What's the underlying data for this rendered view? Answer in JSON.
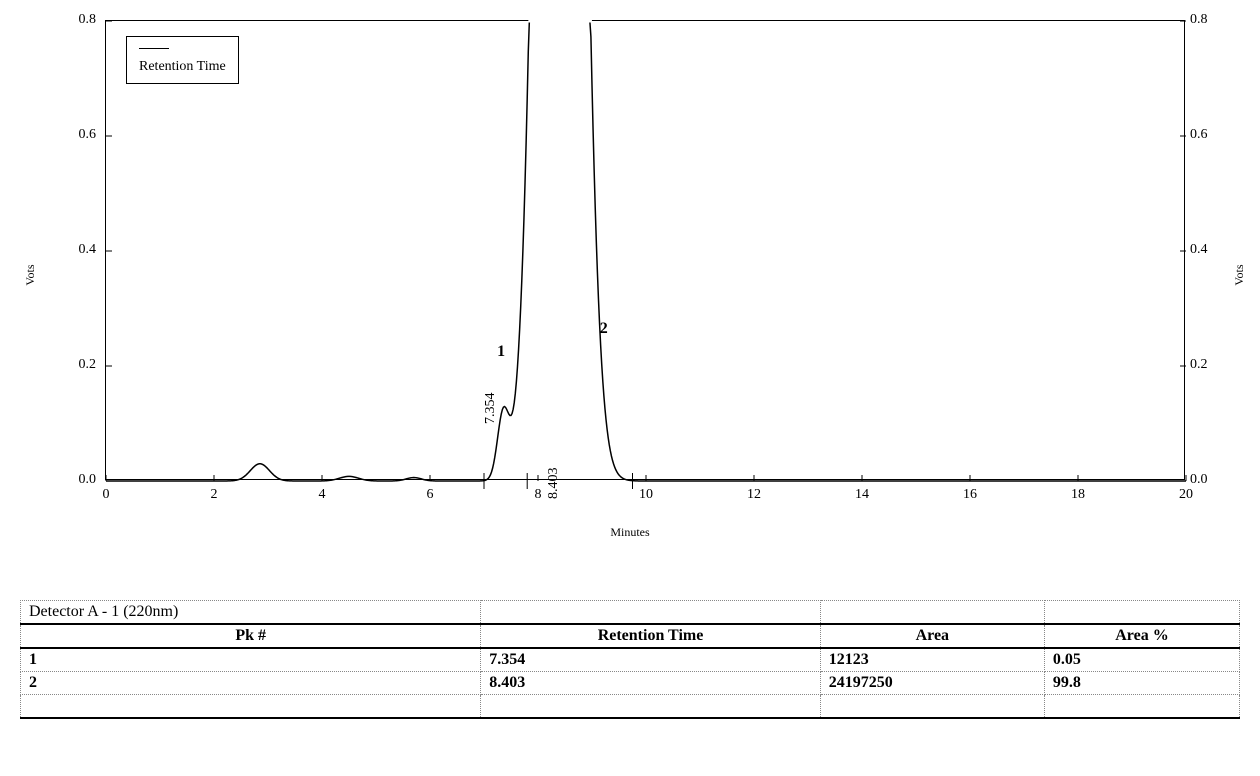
{
  "chart": {
    "type": "chromatogram-line",
    "y_label": "Vots",
    "x_label": "Minutes",
    "legend_text": "Retention Time",
    "xlim": [
      0,
      20
    ],
    "ylim": [
      0.0,
      0.8
    ],
    "x_ticks": [
      0,
      2,
      4,
      6,
      8,
      10,
      12,
      14,
      16,
      18,
      20
    ],
    "y_ticks": [
      0.0,
      0.2,
      0.4,
      0.6,
      0.8
    ],
    "line_color": "#000000",
    "line_width": 1.5,
    "background_color": "#ffffff",
    "border_color": "#000000",
    "tick_font_size": 14,
    "label_font_size": 12,
    "baseline_y": 0.0,
    "small_bumps": [
      {
        "x": 2.85,
        "height": 0.03,
        "width": 0.25
      },
      {
        "x": 4.5,
        "height": 0.008,
        "width": 0.25
      },
      {
        "x": 5.7,
        "height": 0.006,
        "width": 0.2
      }
    ],
    "small_ticks_x": [
      7.0,
      7.8,
      9.75
    ],
    "peaks": [
      {
        "id": 1,
        "retention_time": 7.354,
        "height": 0.11,
        "half_width": 0.15,
        "label": "7.354",
        "marker": "1",
        "clipped": false
      },
      {
        "id": 2,
        "retention_time": 8.403,
        "height": 4.0,
        "half_width": 0.45,
        "label": "8.403",
        "marker": "2",
        "clipped": true
      }
    ]
  },
  "table": {
    "title": "Detector A - 1 (220nm)",
    "columns": [
      "Pk #",
      "Retention Time",
      "Area",
      "Area %"
    ],
    "rows": [
      [
        "1",
        "7.354",
        "12123",
        "0.05"
      ],
      [
        "2",
        "8.403",
        "24197250",
        "99.8"
      ]
    ],
    "border_color_outer": "#000000",
    "border_color_inner": "#888888",
    "font_family": "Times New Roman",
    "header_font_weight": "bold"
  }
}
